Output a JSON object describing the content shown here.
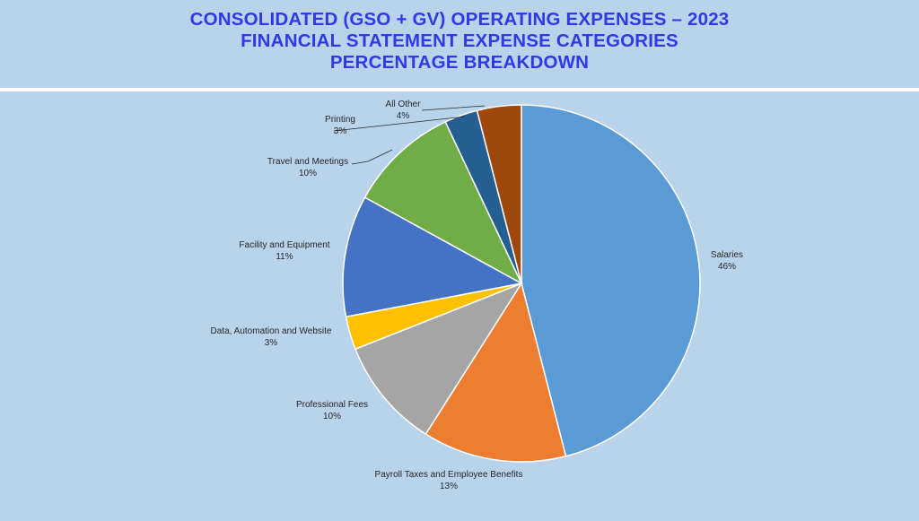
{
  "header": {
    "title_line1": "CONSOLIDATED (GSO + GV) OPERATING EXPENSES – 2023",
    "title_line2": "FINANCIAL STATEMENT EXPENSE CATEGORIES",
    "title_line3": "PERCENTAGE BREAKDOWN"
  },
  "colors": {
    "title": "#2f39e6",
    "background": "#b9d3eb"
  },
  "chart_data": {
    "type": "pie",
    "title": "CONSOLIDATED (GSO + GV) OPERATING EXPENSES – 2023 FINANCIAL STATEMENT EXPENSE CATEGORIES PERCENTAGE BREAKDOWN",
    "slices": [
      {
        "label": "Salaries",
        "value": 46,
        "display": "46%",
        "color": "#5b9bd5"
      },
      {
        "label": "Payroll Taxes and Employee Benefits",
        "value": 13,
        "display": "13%",
        "color": "#ed7d31"
      },
      {
        "label": "Professional Fees",
        "value": 10,
        "display": "10%",
        "color": "#a5a5a5"
      },
      {
        "label": "Data, Automation and Website",
        "value": 3,
        "display": "3%",
        "color": "#ffc000"
      },
      {
        "label": "Facility and Equipment",
        "value": 11,
        "display": "11%",
        "color": "#4472c4"
      },
      {
        "label": "Travel and Meetings",
        "value": 10,
        "display": "10%",
        "color": "#70ad47"
      },
      {
        "label": "Printing",
        "value": 3,
        "display": "3%",
        "color": "#255e91"
      },
      {
        "label": "All Other",
        "value": 4,
        "display": "4%",
        "color": "#9e480e"
      }
    ]
  }
}
